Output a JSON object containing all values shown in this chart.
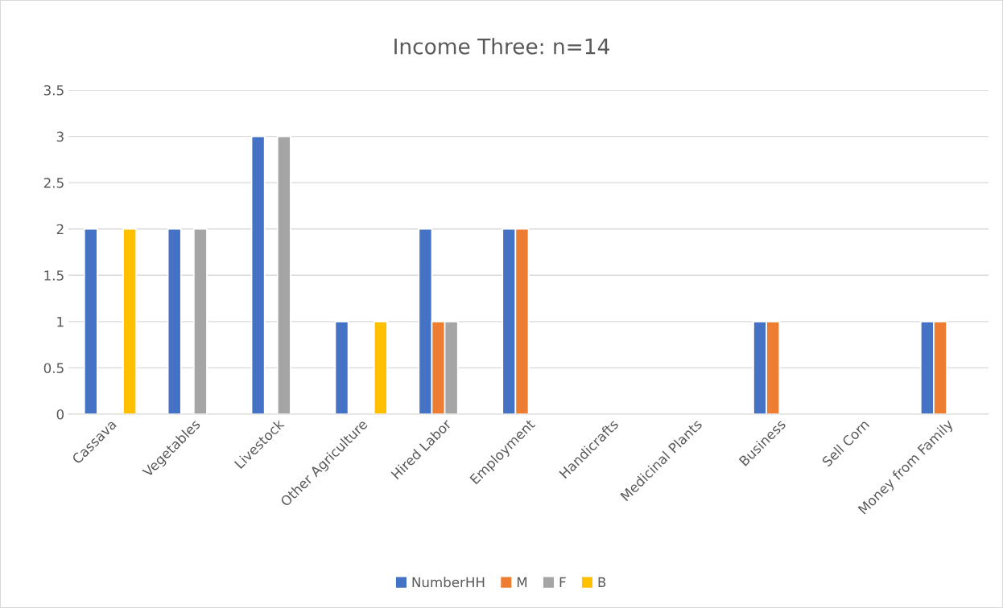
{
  "chart_data": {
    "type": "bar",
    "title": "Income Three: n=14",
    "categories": [
      "Cassava",
      "Vegetables",
      "Livestock",
      "Other Agriculture",
      "Hired Labor",
      "Employment",
      "Handicrafts",
      "Medicinal Plants",
      "Business",
      "Sell Corn",
      "Money from Family"
    ],
    "series": [
      {
        "name": "NumberHH",
        "color": "#4472c4",
        "values": [
          2,
          2,
          3,
          1,
          2,
          2,
          0,
          0,
          1,
          0,
          1
        ]
      },
      {
        "name": "M",
        "color": "#ed7d31",
        "values": [
          0,
          0,
          0,
          0,
          1,
          2,
          0,
          0,
          1,
          0,
          1
        ]
      },
      {
        "name": "F",
        "color": "#a5a5a5",
        "values": [
          0,
          2,
          3,
          0,
          1,
          0,
          0,
          0,
          0,
          0,
          0
        ]
      },
      {
        "name": "B",
        "color": "#ffc000",
        "values": [
          2,
          0,
          0,
          1,
          0,
          0,
          0,
          0,
          0,
          0,
          0
        ]
      }
    ],
    "ylim": [
      0,
      3.5
    ],
    "yticks": [
      0,
      0.5,
      1,
      1.5,
      2,
      2.5,
      3,
      3.5
    ],
    "grid": "y",
    "legend": "bottom"
  }
}
